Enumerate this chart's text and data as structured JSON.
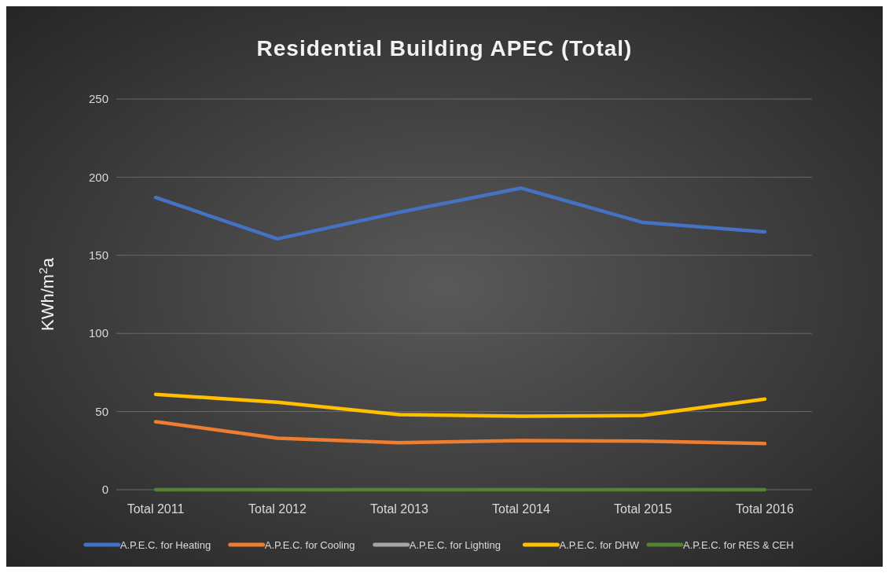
{
  "chart_data": {
    "type": "line",
    "title": "Residential Building APEC (Total)",
    "ylabel": "KWh/m$^{2}$a",
    "categories": [
      "Total 2011",
      "Total 2012",
      "Total 2013",
      "Total 2014",
      "Total 2015",
      "Total 2016"
    ],
    "series": [
      {
        "name": "A.P.E.C. for Heating",
        "color": "#4472c4",
        "values": [
          187,
          160.5,
          177.5,
          193,
          171,
          165
        ]
      },
      {
        "name": "A.P.E.C. for Cooling",
        "color": "#ed7d31",
        "values": [
          43.5,
          33,
          30,
          31.5,
          31,
          29.5
        ]
      },
      {
        "name": "A.P.E.C. for Lighting",
        "color": "#a5a5a5",
        "values": [
          null,
          null,
          null,
          null,
          null,
          null
        ]
      },
      {
        "name": "A.P.E.C. for DHW",
        "color": "#ffc000",
        "values": [
          61,
          56,
          48,
          47,
          47.5,
          58
        ]
      },
      {
        "name": "A.P.E.C. for RES & CEH",
        "color": "#548235",
        "values": [
          0,
          0,
          0,
          0,
          0,
          0
        ]
      }
    ],
    "ylim": [
      0,
      250
    ],
    "yticks": [
      0,
      50,
      100,
      150,
      200,
      250
    ],
    "grid": "y",
    "legend": "bottom",
    "marker": "none",
    "line_style": "solid"
  }
}
